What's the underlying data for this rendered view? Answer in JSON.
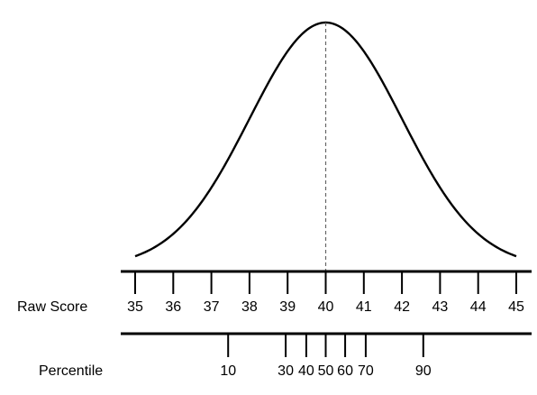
{
  "chart_data": {
    "type": "line",
    "title": "",
    "curve": {
      "description": "normal distribution",
      "mean": 40,
      "sd": 2,
      "x_range": [
        35,
        45
      ]
    },
    "mean_marker": {
      "x": 40,
      "style": "dashed"
    },
    "raw_score_axis": {
      "label": "Raw Score",
      "ticks": [
        35,
        36,
        37,
        38,
        39,
        40,
        41,
        42,
        43,
        44,
        45
      ],
      "tick_labels": [
        "35",
        "36",
        "37",
        "38",
        "39",
        "40",
        "41",
        "42",
        "43",
        "44",
        "45"
      ]
    },
    "percentile_axis": {
      "label": "Percentile",
      "ticks": [
        {
          "label": "10",
          "raw_score": 37.44
        },
        {
          "label": "30",
          "raw_score": 38.95
        },
        {
          "label": "40",
          "raw_score": 39.49
        },
        {
          "label": "50",
          "raw_score": 40.0
        },
        {
          "label": "60",
          "raw_score": 40.51
        },
        {
          "label": "70",
          "raw_score": 41.05
        },
        {
          "label": "90",
          "raw_score": 42.56
        }
      ]
    },
    "grid": false,
    "legend": "none"
  }
}
